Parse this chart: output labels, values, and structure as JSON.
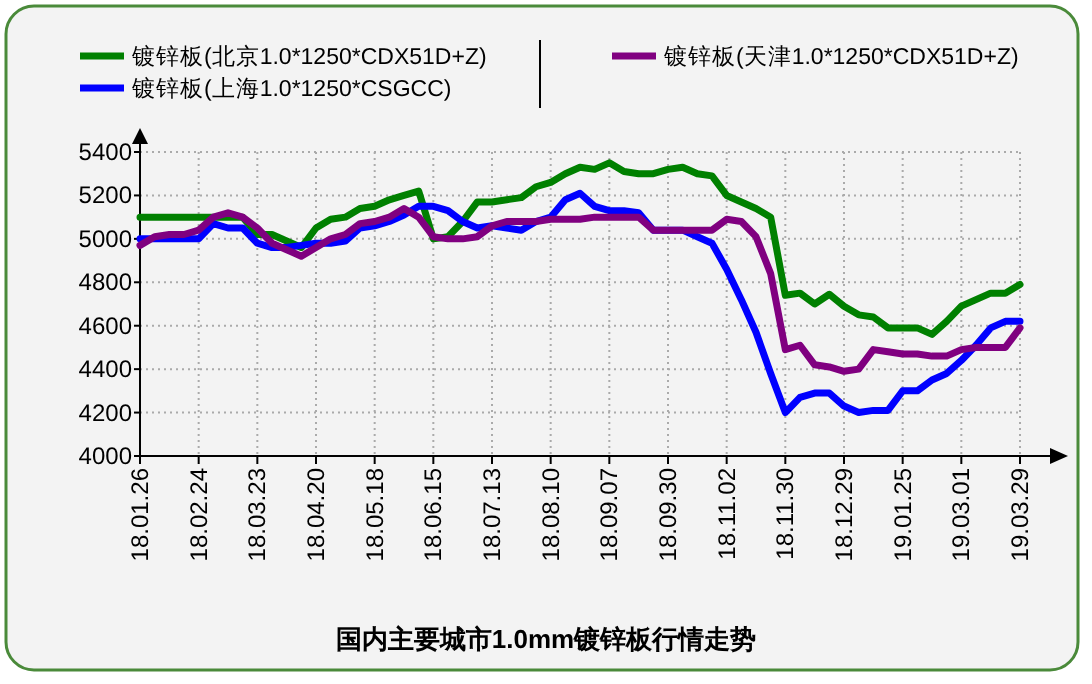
{
  "chart_data": {
    "type": "line",
    "title": "国内主要城市1.0mm镀锌板行情走势",
    "categories": [
      "18.01.26",
      null,
      null,
      null,
      "18.02.24",
      null,
      null,
      null,
      "18.03.23",
      null,
      null,
      null,
      "18.04.20",
      null,
      null,
      null,
      "18.05.18",
      null,
      null,
      null,
      "18.06.15",
      null,
      null,
      null,
      "18.07.13",
      null,
      null,
      null,
      "18.08.10",
      null,
      null,
      null,
      "18.09.07",
      null,
      null,
      null,
      "18.09.30",
      null,
      null,
      null,
      "18.11.02",
      null,
      null,
      null,
      "18.11.30",
      null,
      null,
      null,
      "18.12.29",
      null,
      null,
      null,
      "19.01.25",
      null,
      null,
      null,
      "19.03.01",
      null,
      null,
      null,
      "19.03.29"
    ],
    "series": [
      {
        "name": "镀锌板(北京1.0*1250*CDX51D+Z)",
        "color": "#008000",
        "values": [
          5100,
          5100,
          5100,
          5100,
          5100,
          5100,
          5100,
          5100,
          5020,
          5020,
          4990,
          4960,
          5050,
          5090,
          5100,
          5140,
          5150,
          5180,
          5200,
          5220,
          5000,
          5010,
          5080,
          5170,
          5170,
          5180,
          5190,
          5240,
          5260,
          5300,
          5330,
          5320,
          5350,
          5310,
          5300,
          5300,
          5320,
          5330,
          5300,
          5290,
          5200,
          5170,
          5140,
          5100,
          4740,
          4750,
          4700,
          4745,
          4690,
          4650,
          4640,
          4590,
          4590,
          4590,
          4560,
          4620,
          4690,
          4720,
          4750,
          4750,
          4790
        ]
      },
      {
        "name": "镀锌板(上海1.0*1250*CSGCC)",
        "color": "#0000ff",
        "values": [
          5000,
          5000,
          5000,
          5000,
          5000,
          5070,
          5050,
          5050,
          4980,
          4960,
          4960,
          4970,
          4980,
          4980,
          4990,
          5050,
          5060,
          5080,
          5110,
          5150,
          5150,
          5130,
          5080,
          5050,
          5060,
          5050,
          5040,
          5080,
          5100,
          5180,
          5210,
          5150,
          5130,
          5130,
          5120,
          5040,
          5040,
          5040,
          5010,
          4980,
          4860,
          4720,
          4570,
          4380,
          4200,
          4270,
          4290,
          4290,
          4230,
          4200,
          4210,
          4210,
          4300,
          4300,
          4350,
          4380,
          4440,
          4510,
          4590,
          4620,
          4620
        ]
      },
      {
        "name": "镀锌板(天津1.0*1250*CDX51D+Z)",
        "color": "#800080",
        "values": [
          4970,
          5010,
          5020,
          5020,
          5040,
          5100,
          5120,
          5100,
          5050,
          4980,
          4950,
          4920,
          4960,
          5000,
          5020,
          5070,
          5080,
          5100,
          5140,
          5100,
          5010,
          5000,
          5000,
          5010,
          5060,
          5080,
          5080,
          5080,
          5090,
          5090,
          5090,
          5100,
          5100,
          5100,
          5100,
          5040,
          5040,
          5040,
          5040,
          5040,
          5090,
          5080,
          5010,
          4840,
          4490,
          4510,
          4420,
          4410,
          4390,
          4400,
          4490,
          4480,
          4470,
          4470,
          4460,
          4460,
          4490,
          4500,
          4500,
          4500,
          4590
        ]
      }
    ],
    "ylim": [
      4000,
      5400
    ],
    "yticks": [
      4000,
      4200,
      4400,
      4600,
      4800,
      5000,
      5200,
      5400
    ],
    "grid": true,
    "legend": "top",
    "marker": "none",
    "line_style": "solid"
  }
}
